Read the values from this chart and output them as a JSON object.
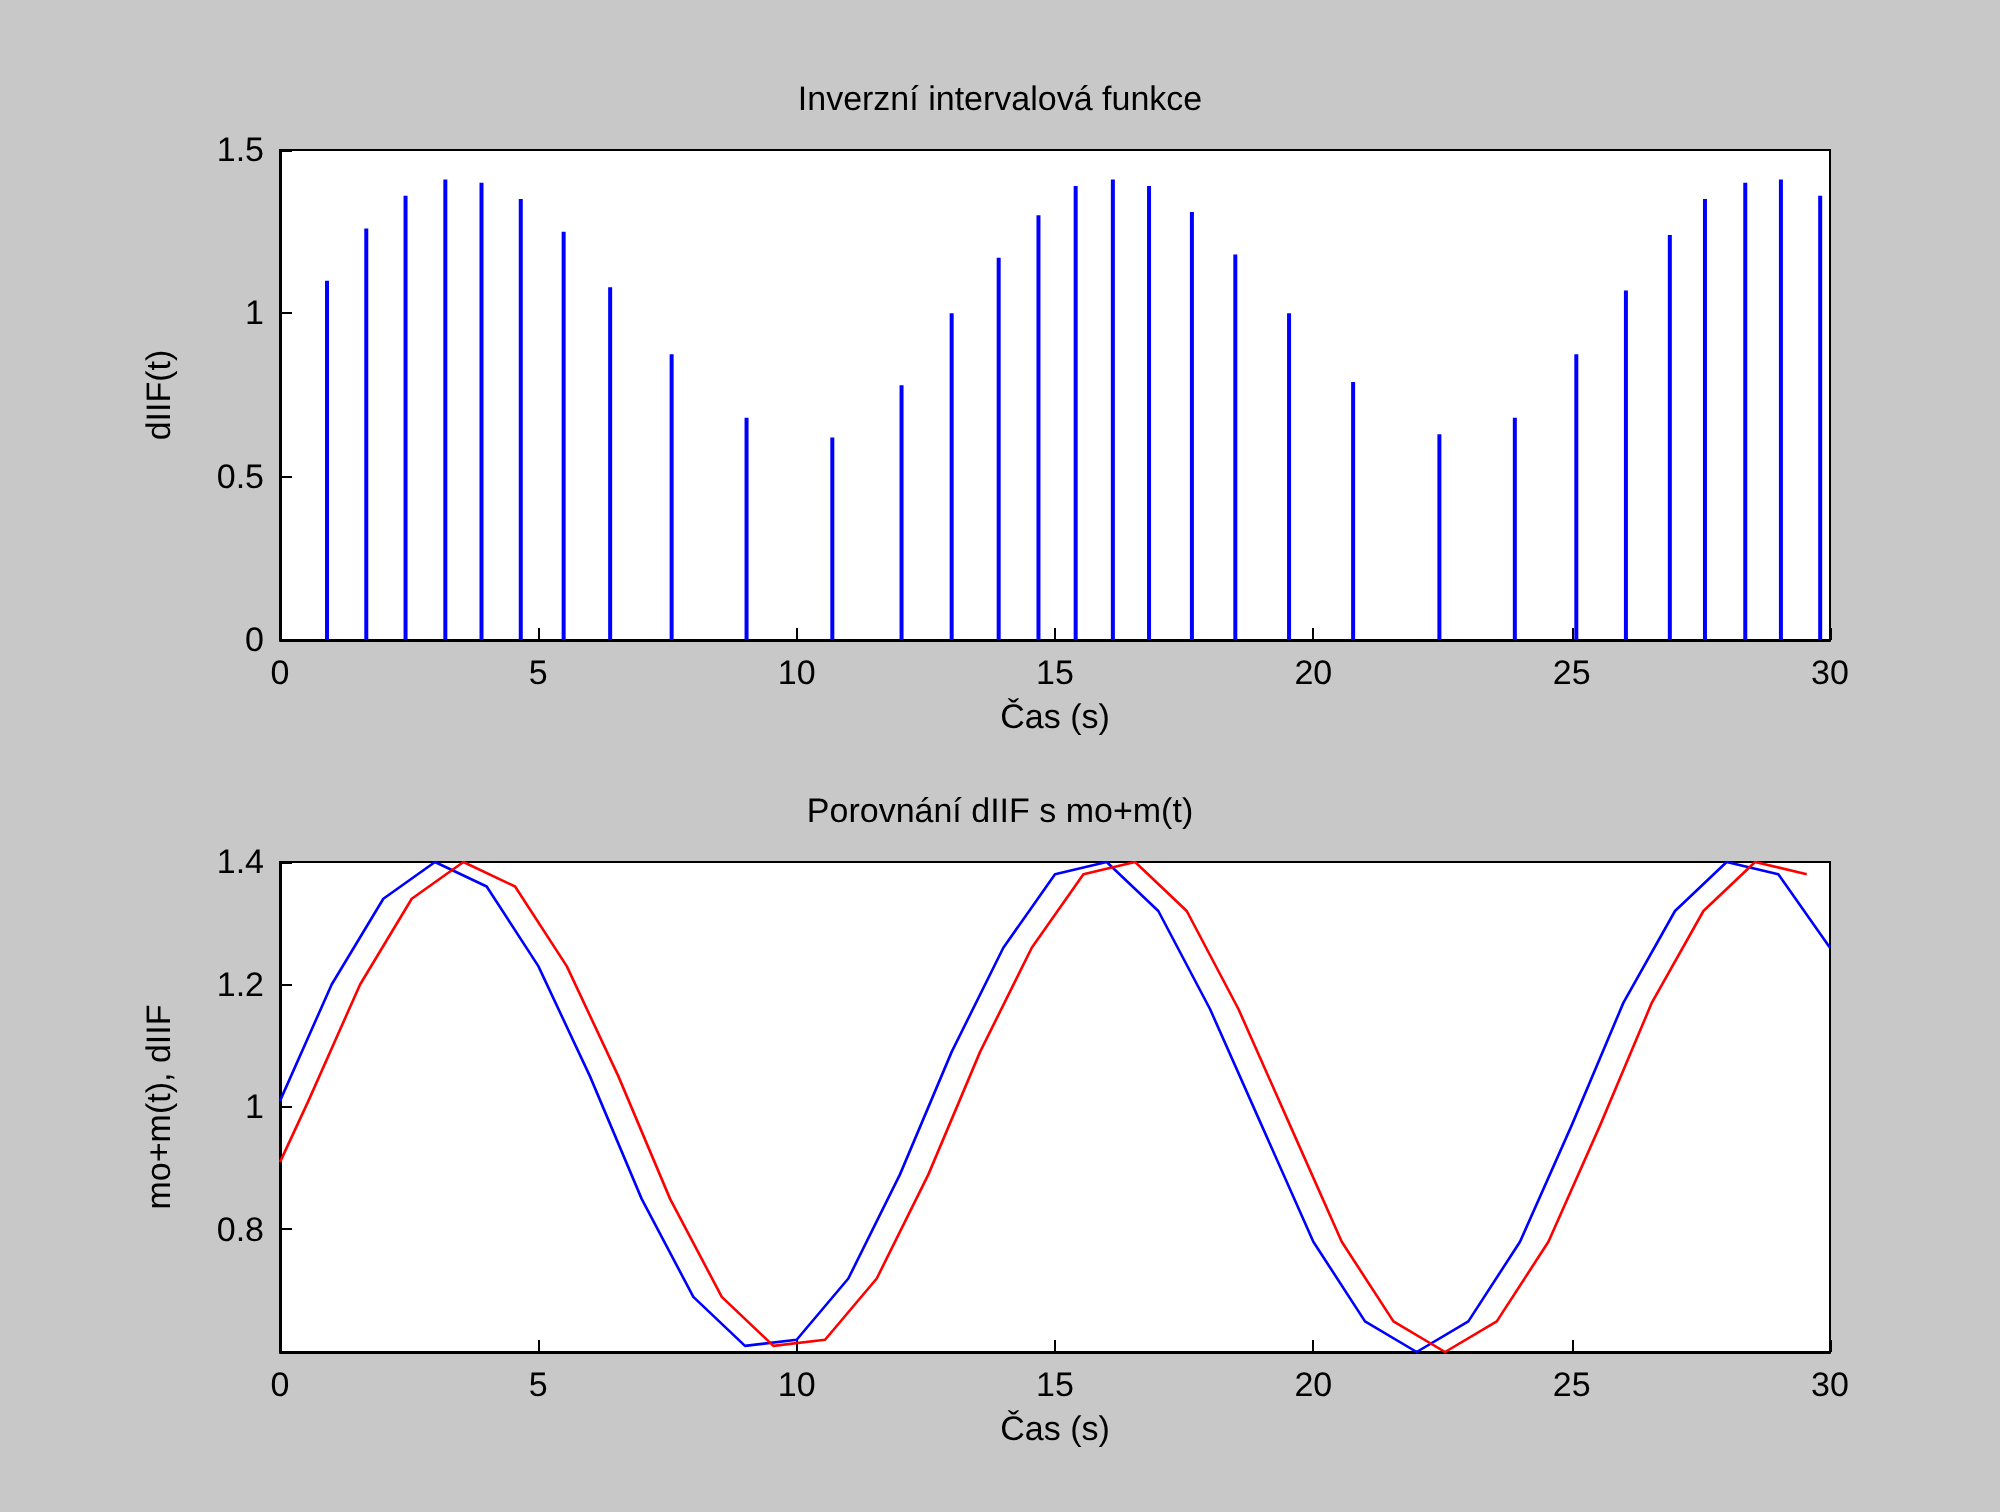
{
  "chart_data": [
    {
      "type": "bar",
      "title": "Inverzní intervalová funkce",
      "xlabel": "Čas (s)",
      "ylabel": "dIIF(t)",
      "x": [
        0.91,
        1.67,
        2.43,
        3.2,
        3.9,
        4.66,
        5.49,
        6.39,
        7.58,
        9.03,
        10.69,
        12.03,
        13.0,
        13.91,
        14.68,
        15.4,
        16.12,
        16.82,
        17.65,
        18.49,
        19.53,
        20.77,
        22.44,
        23.9,
        25.09,
        26.05,
        26.9,
        27.58,
        28.36,
        29.05,
        29.81
      ],
      "values": [
        1.1,
        1.26,
        1.36,
        1.41,
        1.4,
        1.35,
        1.25,
        1.08,
        0.875,
        0.68,
        0.62,
        0.78,
        1.0,
        1.17,
        1.3,
        1.39,
        1.41,
        1.39,
        1.31,
        1.18,
        1.0,
        0.79,
        0.63,
        0.68,
        0.875,
        1.07,
        1.24,
        1.35,
        1.4,
        1.41,
        1.36
      ],
      "color": "#0000ff",
      "xlim": [
        0,
        30
      ],
      "xticks": [
        0,
        5,
        10,
        15,
        20,
        25,
        30
      ],
      "ylim": [
        0,
        1.5
      ],
      "yticks": [
        0,
        0.5,
        1,
        1.5
      ],
      "grid": false
    },
    {
      "type": "line",
      "title": "Porovnání dIIF s mo+m(t)",
      "xlabel": "Čas (s)",
      "ylabel": "mo+m(t), dIIF",
      "series": [
        {
          "color": "#0000ff",
          "x": [
            0,
            1,
            2,
            3,
            4,
            5,
            6,
            7,
            8,
            9,
            10,
            11,
            12,
            13,
            14,
            15,
            16,
            17,
            18,
            19,
            20,
            21,
            22,
            23,
            24,
            25,
            26,
            27,
            28,
            29,
            30
          ],
          "values": [
            1.01,
            1.2,
            1.34,
            1.4,
            1.36,
            1.23,
            1.05,
            0.85,
            0.69,
            0.61,
            0.62,
            0.72,
            0.89,
            1.09,
            1.26,
            1.38,
            1.4,
            1.32,
            1.16,
            0.97,
            0.78,
            0.65,
            0.6,
            0.65,
            0.78,
            0.97,
            1.17,
            1.32,
            1.4,
            1.38,
            1.26
          ]
        },
        {
          "color": "#ff0000",
          "x": [
            0,
            0.55,
            1.55,
            2.55,
            3.55,
            4.55,
            5.55,
            6.55,
            7.55,
            8.55,
            9.55,
            10.55,
            11.55,
            12.55,
            13.55,
            14.55,
            15.55,
            16.55,
            17.55,
            18.55,
            19.55,
            20.55,
            21.55,
            22.55,
            23.55,
            24.55,
            25.55,
            26.55,
            27.55,
            28.55,
            29.55
          ],
          "values": [
            0.91,
            1.01,
            1.2,
            1.34,
            1.4,
            1.36,
            1.23,
            1.05,
            0.85,
            0.69,
            0.61,
            0.62,
            0.72,
            0.89,
            1.09,
            1.26,
            1.38,
            1.4,
            1.32,
            1.16,
            0.97,
            0.78,
            0.65,
            0.6,
            0.65,
            0.78,
            0.97,
            1.17,
            1.32,
            1.4,
            1.38
          ]
        }
      ],
      "xlim": [
        0,
        30
      ],
      "xticks": [
        0,
        5,
        10,
        15,
        20,
        25,
        30
      ],
      "ylim": [
        0.6,
        1.4
      ],
      "yticks": [
        0.8,
        1,
        1.2,
        1.4
      ],
      "grid": false,
      "marker": "none",
      "line_style": "solid"
    }
  ]
}
